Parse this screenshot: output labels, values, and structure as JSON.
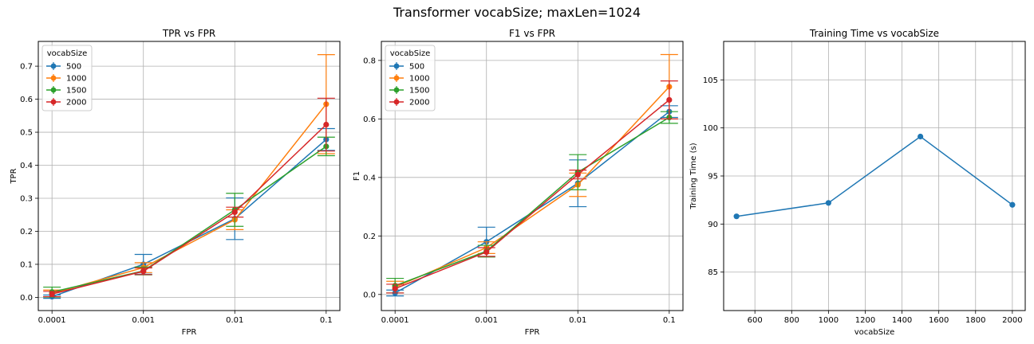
{
  "figure": {
    "suptitle": "Transformer vocabSize; maxLen=1024"
  },
  "colors": {
    "series": [
      "#1f77b4",
      "#ff7f0e",
      "#2ca02c",
      "#d62728"
    ],
    "grid": "#b0b0b0"
  },
  "chart_data": [
    {
      "type": "line",
      "title": "TPR vs FPR",
      "xlabel": "FPR",
      "ylabel": "TPR",
      "xscale": "log",
      "x": [
        0.0001,
        0.001,
        0.01,
        0.1
      ],
      "xtick_labels": [
        "0.0001",
        "0.001",
        "0.01",
        "0.1"
      ],
      "ylim": [
        -0.04,
        0.775
      ],
      "yticks": [
        0.0,
        0.1,
        0.2,
        0.3,
        0.4,
        0.5,
        0.6,
        0.7
      ],
      "ytick_labels": [
        "0.0",
        "0.1",
        "0.2",
        "0.3",
        "0.4",
        "0.5",
        "0.6",
        "0.7"
      ],
      "grid": true,
      "legend": {
        "title": "vocabSize",
        "loc": "upper-left"
      },
      "series": [
        {
          "name": "500",
          "values": [
            0.002,
            0.1,
            0.238,
            0.478
          ],
          "errors": [
            0.005,
            0.03,
            0.063,
            0.033
          ]
        },
        {
          "name": "1000",
          "values": [
            0.012,
            0.09,
            0.235,
            0.585
          ],
          "errors": [
            0.01,
            0.015,
            0.03,
            0.15
          ]
        },
        {
          "name": "1500",
          "values": [
            0.016,
            0.08,
            0.265,
            0.457
          ],
          "errors": [
            0.015,
            0.012,
            0.05,
            0.028
          ]
        },
        {
          "name": "2000",
          "values": [
            0.01,
            0.079,
            0.258,
            0.523
          ],
          "errors": [
            0.008,
            0.01,
            0.015,
            0.08
          ]
        }
      ]
    },
    {
      "type": "line",
      "title": "F1 vs FPR",
      "xlabel": "FPR",
      "ylabel": "F1",
      "xscale": "log",
      "x": [
        0.0001,
        0.001,
        0.01,
        0.1
      ],
      "xtick_labels": [
        "0.0001",
        "0.001",
        "0.01",
        "0.1"
      ],
      "ylim": [
        -0.055,
        0.865
      ],
      "yticks": [
        0.0,
        0.2,
        0.4,
        0.6,
        0.8
      ],
      "ytick_labels": [
        "0.0",
        "0.2",
        "0.4",
        "0.6",
        "0.8"
      ],
      "grid": true,
      "legend": {
        "title": "vocabSize",
        "loc": "upper-left"
      },
      "series": [
        {
          "name": "500",
          "values": [
            0.005,
            0.18,
            0.38,
            0.625
          ],
          "errors": [
            0.01,
            0.05,
            0.08,
            0.02
          ]
        },
        {
          "name": "1000",
          "values": [
            0.025,
            0.16,
            0.375,
            0.71
          ],
          "errors": [
            0.02,
            0.02,
            0.04,
            0.11
          ]
        },
        {
          "name": "1500",
          "values": [
            0.03,
            0.148,
            0.418,
            0.605
          ],
          "errors": [
            0.025,
            0.02,
            0.06,
            0.02
          ]
        },
        {
          "name": "2000",
          "values": [
            0.02,
            0.145,
            0.41,
            0.665
          ],
          "errors": [
            0.015,
            0.015,
            0.015,
            0.065
          ]
        }
      ]
    },
    {
      "type": "line",
      "title": "Training Time vs vocabSize",
      "xlabel": "vocabSize",
      "ylabel": "Training Time (s)",
      "x": [
        500,
        1000,
        1500,
        2000
      ],
      "xlim": [
        430,
        2070
      ],
      "xticks": [
        600,
        800,
        1000,
        1200,
        1400,
        1600,
        1800,
        2000
      ],
      "xtick_labels": [
        "600",
        "800",
        "1000",
        "1200",
        "1400",
        "1600",
        "1800",
        "2000"
      ],
      "ylim": [
        81.0,
        109.0
      ],
      "yticks": [
        85,
        90,
        95,
        100,
        105
      ],
      "ytick_labels": [
        "85",
        "90",
        "95",
        "100",
        "105"
      ],
      "grid": true,
      "series": [
        {
          "values": [
            90.8,
            92.2,
            99.1,
            92.0
          ]
        }
      ]
    }
  ]
}
